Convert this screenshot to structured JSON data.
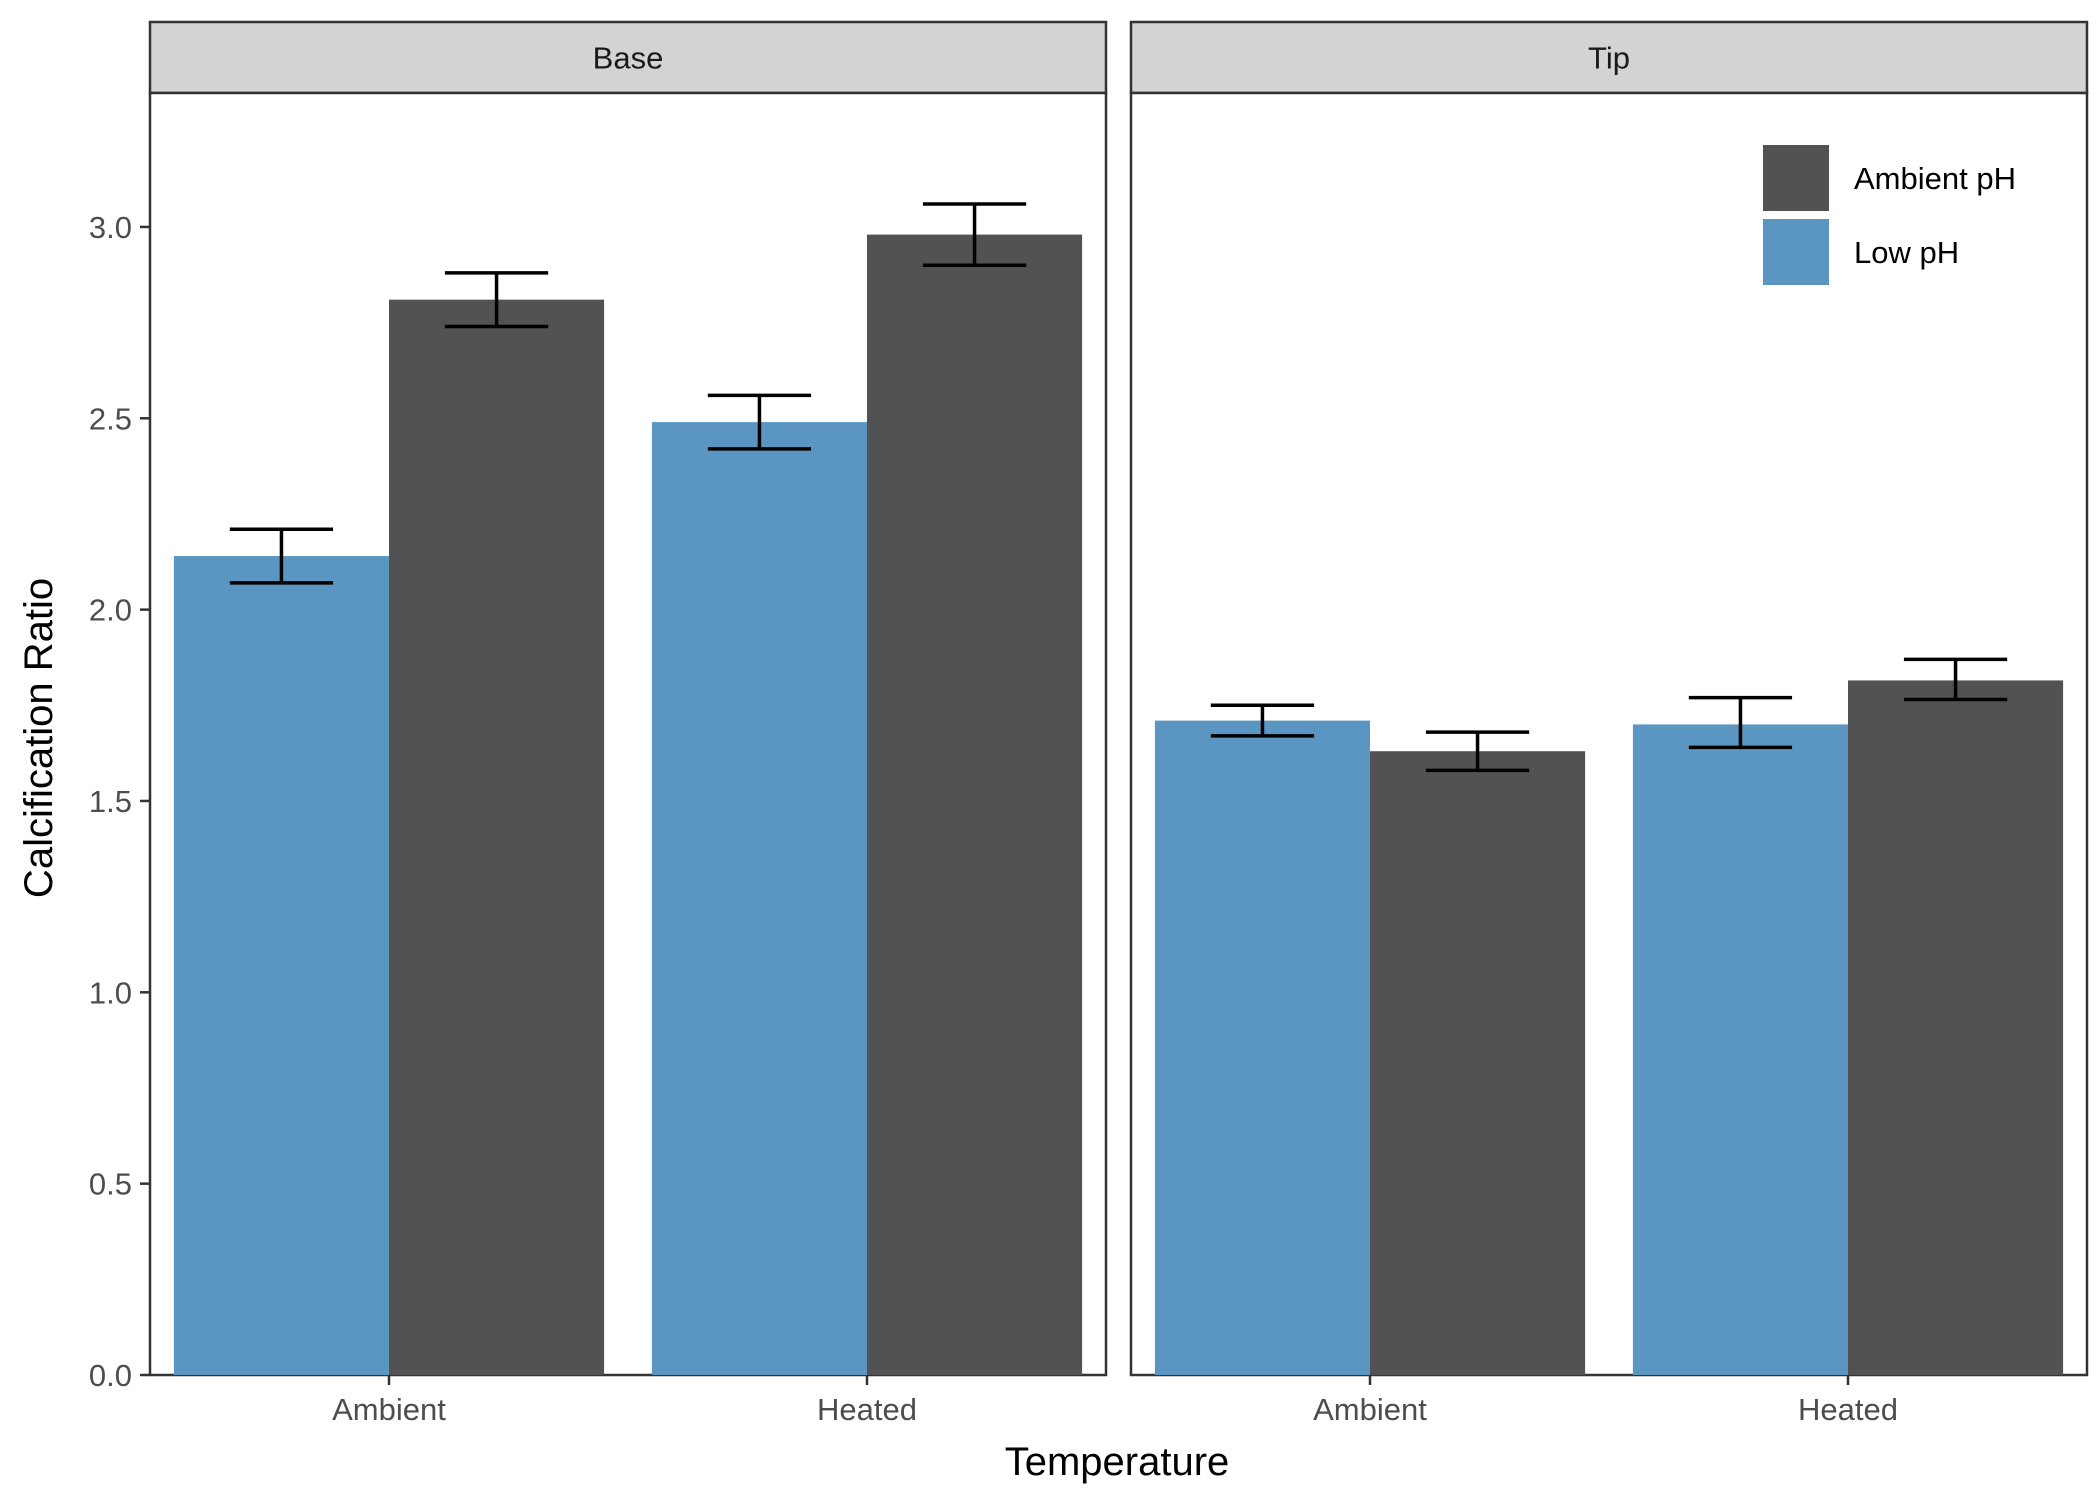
{
  "chart_data": {
    "type": "bar",
    "facets": [
      "Base",
      "Tip"
    ],
    "categories": [
      "Ambient",
      "Heated"
    ],
    "xlabel": "Temperature",
    "ylabel": "Calcification Ratio",
    "ylim": [
      0,
      3.35
    ],
    "yticks": [
      0.0,
      0.5,
      1.0,
      1.5,
      2.0,
      2.5,
      3.0
    ],
    "ytick_labels": [
      "0.0",
      "0.5",
      "1.0",
      "1.5",
      "2.0",
      "2.5",
      "3.0"
    ],
    "legend": {
      "position": "top-right",
      "entries": [
        "Ambient pH",
        "Low pH"
      ]
    },
    "colors": {
      "Low pH": "#5b96c2",
      "Ambient pH": "#525252"
    },
    "series_order": [
      "Low pH",
      "Ambient pH"
    ],
    "panels": [
      {
        "facet": "Base",
        "series": [
          {
            "name": "Low pH",
            "values": [
              2.14,
              2.49
            ],
            "err_low": [
              2.07,
              2.42
            ],
            "err_high": [
              2.21,
              2.56
            ]
          },
          {
            "name": "Ambient pH",
            "values": [
              2.81,
              2.98
            ],
            "err_low": [
              2.74,
              2.9
            ],
            "err_high": [
              2.88,
              3.06
            ]
          }
        ]
      },
      {
        "facet": "Tip",
        "series": [
          {
            "name": "Low pH",
            "values": [
              1.71,
              1.7
            ],
            "err_low": [
              1.67,
              1.64
            ],
            "err_high": [
              1.75,
              1.77
            ]
          },
          {
            "name": "Ambient pH",
            "values": [
              1.63,
              1.815
            ],
            "err_low": [
              1.58,
              1.765
            ],
            "err_high": [
              1.68,
              1.87
            ]
          }
        ]
      }
    ]
  }
}
